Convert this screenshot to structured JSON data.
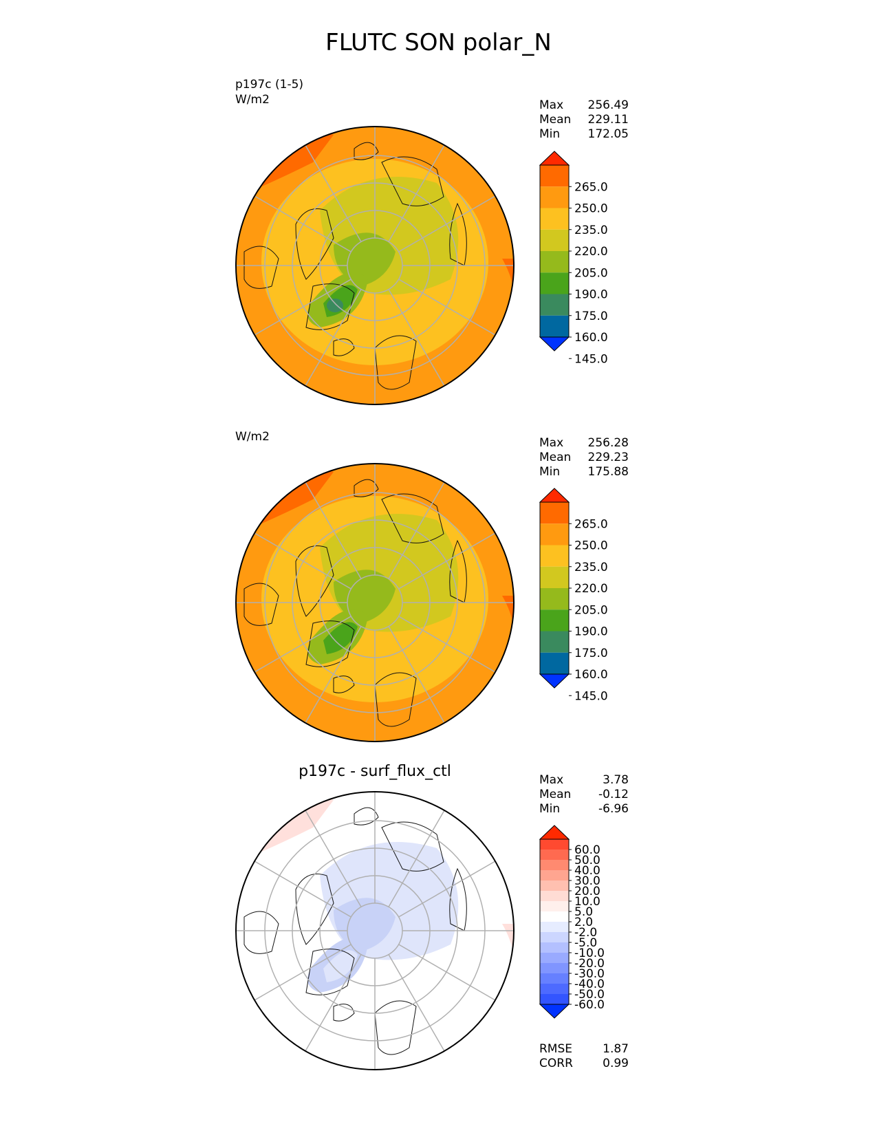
{
  "title": "FLUTC SON polar_N",
  "panels": [
    {
      "id": "test",
      "left_label": "p197c (1-5)",
      "units": "W/m2",
      "center_title": "",
      "stats": [
        {
          "label": "Max",
          "value": "256.49"
        },
        {
          "label": "Mean",
          "value": "229.11"
        },
        {
          "label": "Min",
          "value": "172.05"
        }
      ],
      "colorbar": {
        "ticks": [
          "265.0",
          "250.0",
          "235.0",
          "220.0",
          "205.0",
          "190.0",
          "175.0",
          "160.0",
          "145.0"
        ],
        "colors": [
          "#ff2a00",
          "#ff6a00",
          "#ff9a10",
          "#fdc120",
          "#d2c81f",
          "#95ba1c",
          "#4aa41b",
          "#3a8a5e",
          "#0068a0",
          "#0033ff"
        ]
      },
      "field_colors": {
        "outer": "#ff9a10",
        "ring": "#fdc120",
        "core": "#d2c81f",
        "deep": "#95ba1c",
        "deeper": "#4aa41b",
        "deepest": "#3a8a5e",
        "edge": "#ff6a00"
      }
    },
    {
      "id": "reference",
      "left_label": "",
      "units": "W/m2",
      "center_title": "",
      "stats": [
        {
          "label": "Max",
          "value": "256.28"
        },
        {
          "label": "Mean",
          "value": "229.23"
        },
        {
          "label": "Min",
          "value": "175.88"
        }
      ],
      "colorbar": {
        "ticks": [
          "265.0",
          "250.0",
          "235.0",
          "220.0",
          "205.0",
          "190.0",
          "175.0",
          "160.0",
          "145.0"
        ],
        "colors": [
          "#ff2a00",
          "#ff6a00",
          "#ff9a10",
          "#fdc120",
          "#d2c81f",
          "#95ba1c",
          "#4aa41b",
          "#3a8a5e",
          "#0068a0",
          "#0033ff"
        ]
      },
      "field_colors": {
        "outer": "#ff9a10",
        "ring": "#fdc120",
        "core": "#d2c81f",
        "deep": "#95ba1c",
        "deeper": "#4aa41b",
        "deepest": "#4aa41b",
        "edge": "#ff6a00"
      }
    },
    {
      "id": "difference",
      "left_label": "",
      "units": "",
      "center_title": "p197c - surf_flux_ctl",
      "stats": [
        {
          "label": "Max",
          "value": "3.78"
        },
        {
          "label": "Mean",
          "value": "-0.12"
        },
        {
          "label": "Min",
          "value": "-6.96"
        }
      ],
      "colorbar": {
        "ticks": [
          "60.0",
          "50.0",
          "40.0",
          "30.0",
          "20.0",
          "10.0",
          "5.0",
          "2.0",
          "-2.0",
          "-5.0",
          "-10.0",
          "-20.0",
          "-30.0",
          "-40.0",
          "-50.0",
          "-60.0"
        ],
        "colors": [
          "#ff2a00",
          "#ff4a30",
          "#ff6a50",
          "#ff8a70",
          "#ffa590",
          "#ffc0b0",
          "#ffdcd4",
          "#fff0ec",
          "#ffffff",
          "#e6ecff",
          "#ccd6ff",
          "#b3c0ff",
          "#99aaff",
          "#8095ff",
          "#6680ff",
          "#4d6aff",
          "#3355ff",
          "#0033ff"
        ]
      },
      "field_colors": {
        "outer": "#ffffff",
        "ring": "#ffffff",
        "core": "#dfe5fb",
        "deep": "#c8d2f7",
        "deeper": "#dfe5fb",
        "deepest": "#dfe5fb",
        "edge": "#ffe0dc"
      }
    }
  ],
  "metrics": [
    {
      "label": "RMSE",
      "value": "1.87"
    },
    {
      "label": "CORR",
      "value": "0.99"
    }
  ]
}
